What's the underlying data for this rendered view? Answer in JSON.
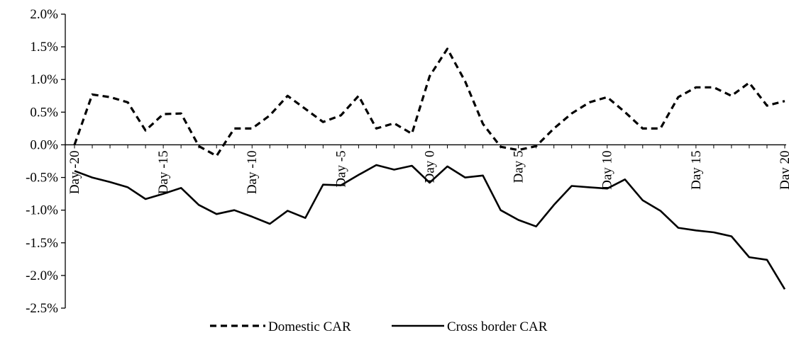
{
  "chart_data": {
    "type": "line",
    "title": "",
    "xlabel": "",
    "ylabel": "",
    "ylim": [
      -0.025,
      0.02
    ],
    "y_ticks": [
      0.02,
      0.015,
      0.01,
      0.005,
      0.0,
      -0.005,
      -0.01,
      -0.015,
      -0.02,
      -0.025
    ],
    "y_tick_labels": [
      "2.0%",
      "1.5%",
      "1.0%",
      "0.5%",
      "0.0%",
      "-0.5%",
      "-1.0%",
      "-1.5%",
      "-2.0%",
      "-2.5%"
    ],
    "x": [
      -20,
      -19,
      -18,
      -17,
      -16,
      -15,
      -14,
      -13,
      -12,
      -11,
      -10,
      -9,
      -8,
      -7,
      -6,
      -5,
      -4,
      -3,
      -2,
      -1,
      0,
      1,
      2,
      3,
      4,
      5,
      6,
      7,
      8,
      9,
      10,
      11,
      12,
      13,
      14,
      15,
      16,
      17,
      18,
      19,
      20
    ],
    "x_tick_values": [
      -20,
      -15,
      -10,
      -5,
      0,
      5,
      10,
      15,
      20
    ],
    "x_tick_labels": [
      "Day -20",
      "Day -15",
      "Day -10",
      "Day -5",
      "Day 0",
      "Day 5",
      "Day 10",
      "Day 15",
      "Day 20"
    ],
    "grid": false,
    "legend": "bottom",
    "series": [
      {
        "name": "Domestic CAR",
        "style": "dashed",
        "color": "#000000",
        "values": [
          0.0,
          0.0077,
          0.0073,
          0.0065,
          0.0022,
          0.0047,
          0.0048,
          -0.0002,
          -0.0017,
          0.0025,
          0.0025,
          0.0045,
          0.0075,
          0.0055,
          0.0035,
          0.0045,
          0.0075,
          0.0025,
          0.0033,
          0.0017,
          0.0105,
          0.0147,
          0.0097,
          0.0032,
          -0.0003,
          -0.0008,
          -0.0002,
          0.0025,
          0.0048,
          0.0065,
          0.0073,
          0.005,
          0.0025,
          0.0025,
          0.0073,
          0.0088,
          0.0088,
          0.0075,
          0.0095,
          0.006,
          0.0067
        ]
      },
      {
        "name": "Cross border CAR",
        "style": "solid",
        "color": "#000000",
        "values": [
          -0.004,
          -0.005,
          -0.0057,
          -0.0065,
          -0.0083,
          -0.0075,
          -0.0066,
          -0.0092,
          -0.0106,
          -0.01,
          -0.011,
          -0.0121,
          -0.0101,
          -0.0112,
          -0.0061,
          -0.0062,
          -0.0046,
          -0.0031,
          -0.0038,
          -0.0032,
          -0.0058,
          -0.0033,
          -0.005,
          -0.0047,
          -0.01,
          -0.0115,
          -0.0125,
          -0.0092,
          -0.0063,
          -0.0065,
          -0.0067,
          -0.0053,
          -0.0085,
          -0.0101,
          -0.0127,
          -0.0131,
          -0.0134,
          -0.014,
          -0.0172,
          -0.0176,
          -0.0221
        ]
      }
    ]
  }
}
